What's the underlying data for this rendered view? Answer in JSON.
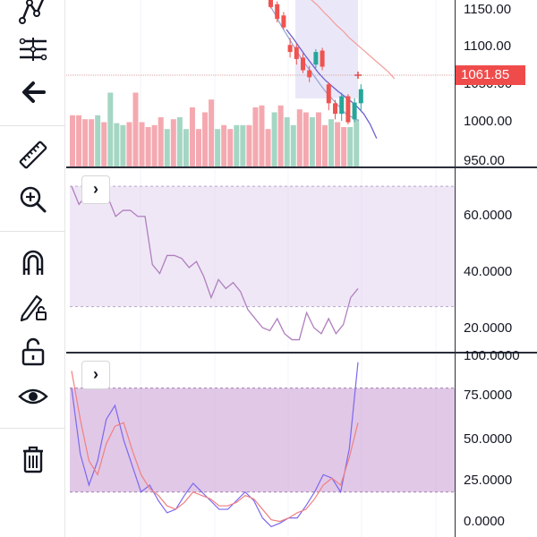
{
  "toolbar": {
    "items": [
      {
        "name": "pattern-tool-icon"
      },
      {
        "name": "fib-retracement-icon"
      },
      {
        "name": "back-arrow-icon"
      },
      {
        "name": "ruler-icon"
      },
      {
        "name": "zoom-in-icon"
      },
      {
        "name": "magnet-icon"
      },
      {
        "name": "stay-in-drawing-mode-icon"
      },
      {
        "name": "lock-icon"
      },
      {
        "name": "eye-icon"
      },
      {
        "name": "trash-icon"
      }
    ]
  },
  "colors": {
    "up": "#26a69a",
    "down": "#ef5350",
    "volume_up": "#a5d6c4",
    "volume_down": "#f4a9b0",
    "band_fill": "#e1d3ee",
    "stoch_fill": "#d7b6df",
    "rsi_line": "#b07fbe",
    "stoch_k": "#7b68ee",
    "stoch_d": "#f08080",
    "price_tag": "#f04b4b"
  },
  "chart_data": [
    {
      "type": "candlestick",
      "pane": "price",
      "price_axis_ticks": [
        "1150.00",
        "1100.00",
        "1050.00",
        "1000.00",
        "950.00"
      ],
      "last_price_label": "1061.85",
      "ylim": [
        945,
        1182
      ],
      "candles": [
        {
          "o": 1182,
          "h": 1185,
          "l": 1170,
          "c": 1172
        },
        {
          "o": 1176,
          "h": 1180,
          "l": 1150,
          "c": 1155
        },
        {
          "o": 1160,
          "h": 1165,
          "l": 1140,
          "c": 1143
        },
        {
          "o": 1118,
          "h": 1128,
          "l": 1100,
          "c": 1108
        },
        {
          "o": 1115,
          "h": 1120,
          "l": 1090,
          "c": 1098
        },
        {
          "o": 1100,
          "h": 1106,
          "l": 1078,
          "c": 1082
        },
        {
          "o": 1082,
          "h": 1088,
          "l": 1065,
          "c": 1072
        },
        {
          "o": 1090,
          "h": 1112,
          "l": 1085,
          "c": 1108
        },
        {
          "o": 1110,
          "h": 1114,
          "l": 1082,
          "c": 1087
        },
        {
          "o": 1062,
          "h": 1065,
          "l": 1025,
          "c": 1035
        },
        {
          "o": 1035,
          "h": 1040,
          "l": 1012,
          "c": 1020
        },
        {
          "o": 1020,
          "h": 1050,
          "l": 1010,
          "c": 1045
        },
        {
          "o": 1045,
          "h": 1048,
          "l": 1005,
          "c": 1008
        },
        {
          "o": 1012,
          "h": 1042,
          "l": 1008,
          "c": 1036
        },
        {
          "o": 1035,
          "h": 1062,
          "l": 1025,
          "c": 1055
        }
      ],
      "moving_averages": [
        {
          "values": [
            1178,
            1162,
            1145,
            1130,
            1115,
            1100,
            1087,
            1075,
            1062,
            1050,
            1040,
            1030,
            1020,
            1015,
            1010
          ]
        },
        {
          "values": [
            1190,
            1183,
            1175,
            1165,
            1156,
            1146,
            1138,
            1128,
            1120,
            1112,
            1104,
            1096,
            1088,
            1080,
            1070
          ]
        },
        {
          "values": [
            1140,
            1128,
            1115,
            1102,
            1090,
            1078,
            1068,
            1060,
            1052,
            1045,
            1038,
            1030,
            1020,
            1005,
            985
          ]
        }
      ],
      "volume": [
        {
          "v": 0.52,
          "dir": "down"
        },
        {
          "v": 0.52,
          "dir": "down"
        },
        {
          "v": 0.48,
          "dir": "down"
        },
        {
          "v": 0.48,
          "dir": "down"
        },
        {
          "v": 0.52,
          "dir": "up"
        },
        {
          "v": 0.45,
          "dir": "down"
        },
        {
          "v": 0.75,
          "dir": "up"
        },
        {
          "v": 0.44,
          "dir": "up"
        },
        {
          "v": 0.42,
          "dir": "up"
        },
        {
          "v": 0.45,
          "dir": "down"
        },
        {
          "v": 0.75,
          "dir": "down"
        },
        {
          "v": 0.45,
          "dir": "down"
        },
        {
          "v": 0.4,
          "dir": "down"
        },
        {
          "v": 0.42,
          "dir": "down"
        },
        {
          "v": 0.5,
          "dir": "down"
        },
        {
          "v": 0.38,
          "dir": "up"
        },
        {
          "v": 0.48,
          "dir": "down"
        },
        {
          "v": 0.5,
          "dir": "up"
        },
        {
          "v": 0.38,
          "dir": "up"
        },
        {
          "v": 0.6,
          "dir": "down"
        },
        {
          "v": 0.38,
          "dir": "down"
        },
        {
          "v": 0.55,
          "dir": "down"
        },
        {
          "v": 0.68,
          "dir": "down"
        },
        {
          "v": 0.38,
          "dir": "up"
        },
        {
          "v": 0.42,
          "dir": "down"
        },
        {
          "v": 0.38,
          "dir": "down"
        },
        {
          "v": 0.42,
          "dir": "up"
        },
        {
          "v": 0.42,
          "dir": "up"
        },
        {
          "v": 0.42,
          "dir": "down"
        },
        {
          "v": 0.6,
          "dir": "down"
        },
        {
          "v": 0.62,
          "dir": "down"
        },
        {
          "v": 0.38,
          "dir": "down"
        },
        {
          "v": 0.55,
          "dir": "up"
        },
        {
          "v": 0.62,
          "dir": "down"
        },
        {
          "v": 0.5,
          "dir": "up"
        },
        {
          "v": 0.42,
          "dir": "up"
        },
        {
          "v": 0.58,
          "dir": "down"
        },
        {
          "v": 0.55,
          "dir": "down"
        },
        {
          "v": 0.5,
          "dir": "up"
        },
        {
          "v": 0.55,
          "dir": "down"
        },
        {
          "v": 0.42,
          "dir": "down"
        },
        {
          "v": 0.48,
          "dir": "up"
        },
        {
          "v": 0.45,
          "dir": "down"
        },
        {
          "v": 0.4,
          "dir": "down"
        },
        {
          "v": 0.4,
          "dir": "up"
        },
        {
          "v": 0.48,
          "dir": "up"
        }
      ]
    },
    {
      "type": "line",
      "pane": "rsi",
      "ticks": [
        "60.0000",
        "40.0000",
        "20.0000"
      ],
      "ylim": [
        15,
        76
      ],
      "band": [
        30,
        70
      ],
      "values": [
        70,
        64,
        67,
        67,
        65,
        66,
        60,
        62,
        62,
        60,
        60,
        44,
        41,
        47,
        47,
        46,
        43,
        45,
        40,
        33,
        39,
        36,
        38,
        35,
        29,
        26,
        23,
        22,
        26,
        21,
        19,
        19,
        28,
        23,
        21,
        26,
        21,
        24,
        33,
        36
      ]
    },
    {
      "type": "line",
      "pane": "stochastic",
      "ticks": [
        "100.0000",
        "75.0000",
        "50.0000",
        "25.0000",
        "0.0000"
      ],
      "ylim": [
        -6,
        100
      ],
      "band": [
        20,
        80
      ],
      "series": [
        {
          "values": [
            80,
            42,
            24,
            38,
            62,
            70,
            50,
            35,
            20,
            24,
            15,
            8,
            10,
            18,
            25,
            20,
            15,
            10,
            10,
            15,
            20,
            15,
            5,
            0,
            2,
            5,
            5,
            12,
            20,
            30,
            28,
            20,
            45,
            95
          ]
        },
        {
          "values": [
            90,
            62,
            38,
            30,
            48,
            58,
            60,
            44,
            30,
            22,
            18,
            12,
            10,
            14,
            20,
            18,
            16,
            12,
            12,
            14,
            18,
            16,
            10,
            4,
            3,
            5,
            8,
            10,
            16,
            24,
            28,
            24,
            40,
            60
          ]
        }
      ]
    }
  ]
}
